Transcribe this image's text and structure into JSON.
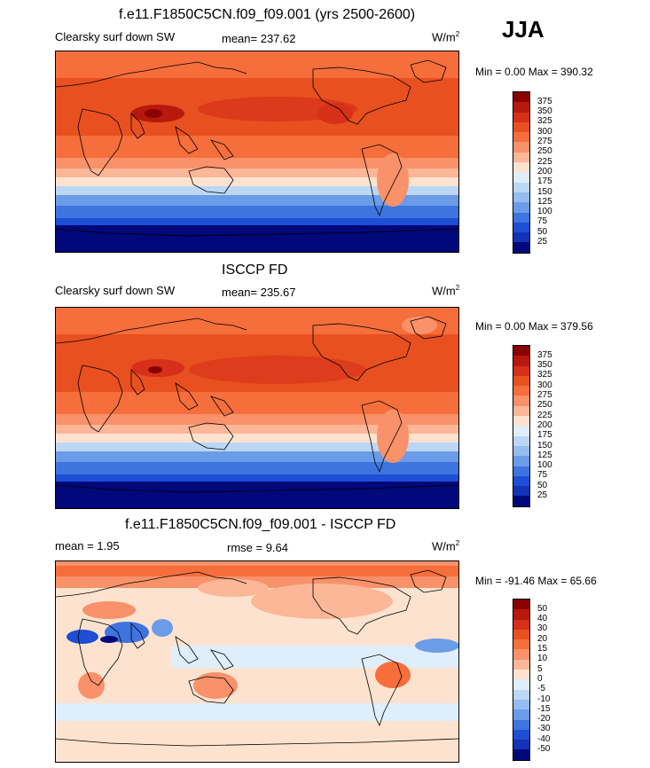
{
  "season": "JJA",
  "panels": [
    {
      "title": "f.e11.F1850C5CN.f09_f09.001 (yrs 2500-2600)",
      "left_label": "Clearsky surf down SW",
      "center_label": "mean= 237.62",
      "units_base": "W/m",
      "units_exp": "2",
      "minmax": "Min =   0.00 Max = 390.32",
      "colorbar_labels": [
        "375",
        "350",
        "325",
        "300",
        "275",
        "250",
        "225",
        "200",
        "175",
        "150",
        "125",
        "100",
        "75",
        "50",
        "25"
      ],
      "colorbar_colors": [
        "#8b0000",
        "#b8190d",
        "#d5301a",
        "#e8501f",
        "#f56e3c",
        "#f9916a",
        "#fbb797",
        "#fde3cf",
        "#dfeefb",
        "#bcd7f5",
        "#94bdf0",
        "#6b9ce8",
        "#3f73de",
        "#1e4ed4",
        "#1334b8",
        "#00087a"
      ]
    },
    {
      "title": "ISCCP FD",
      "left_label": "Clearsky surf down SW",
      "center_label": "mean= 235.67",
      "units_base": "W/m",
      "units_exp": "2",
      "minmax": "Min =   0.00 Max = 379.56",
      "colorbar_labels": [
        "375",
        "350",
        "325",
        "300",
        "275",
        "250",
        "225",
        "200",
        "175",
        "150",
        "125",
        "100",
        "75",
        "50",
        "25"
      ],
      "colorbar_colors": [
        "#8b0000",
        "#b8190d",
        "#d5301a",
        "#e8501f",
        "#f56e3c",
        "#f9916a",
        "#fbb797",
        "#fde3cf",
        "#dfeefb",
        "#bcd7f5",
        "#94bdf0",
        "#6b9ce8",
        "#3f73de",
        "#1e4ed4",
        "#1334b8",
        "#00087a"
      ]
    },
    {
      "title": "f.e11.F1850C5CN.f09_f09.001 - ISCCP FD",
      "left_label": "mean =   1.95",
      "center_label": "rmse =   9.64",
      "units_base": "W/m",
      "units_exp": "2",
      "minmax": "Min = -91.46 Max =  65.66",
      "colorbar_labels": [
        "50",
        "40",
        "30",
        "20",
        "15",
        "10",
        "5",
        "0",
        "-5",
        "-10",
        "-15",
        "-20",
        "-30",
        "-40",
        "-50"
      ],
      "colorbar_colors": [
        "#8b0000",
        "#b8190d",
        "#d5301a",
        "#e8501f",
        "#f56e3c",
        "#f9916a",
        "#fbb797",
        "#fde3cf",
        "#dfeefb",
        "#bcd7f5",
        "#94bdf0",
        "#6b9ce8",
        "#3f73de",
        "#1e4ed4",
        "#1334b8",
        "#00087a"
      ]
    }
  ]
}
